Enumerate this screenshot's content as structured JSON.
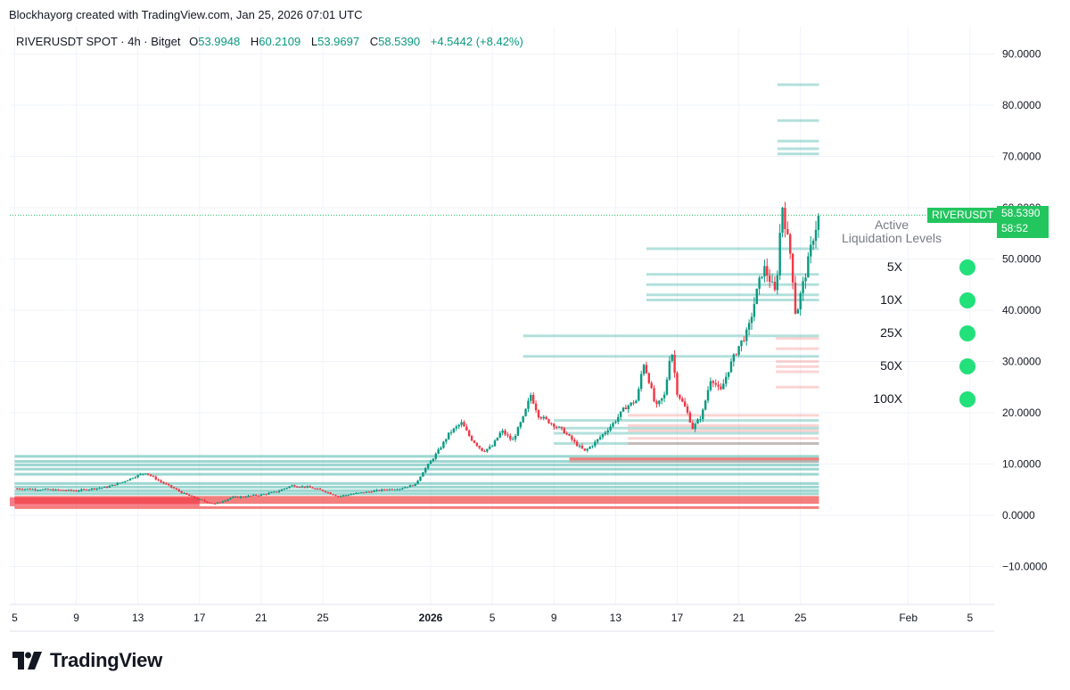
{
  "header": {
    "caption": "Blockhayorg created with TradingView.com, Jan 25, 2026 07:01 UTC"
  },
  "legend": {
    "symbol": "RIVERUSDT SPOT · 4h · Bitget",
    "o_label": "O",
    "o_value": "53.9948",
    "h_label": "H",
    "h_value": "60.2109",
    "l_label": "L",
    "l_value": "53.9697",
    "c_label": "C",
    "c_value": "58.5390",
    "change": "+4.5442 (+8.42%)"
  },
  "price_tag": {
    "symbol": "RIVERUSDT",
    "price": "58.5390",
    "countdown": "58:52",
    "color": "#22c55e"
  },
  "liquidation_panel": {
    "title_line1": "Active",
    "title_line2": "Liquidation Levels",
    "levels": [
      "5X",
      "10X",
      "25X",
      "50X",
      "100X"
    ],
    "dot_color": "#22e07a"
  },
  "footer": {
    "brand": "TradingView"
  },
  "chart_data": {
    "type": "candlestick",
    "title": "RIVERUSDT SPOT · 4h · Bitget",
    "ylim": [
      -15,
      95
    ],
    "y_ticks": [
      90,
      80,
      70,
      60,
      50,
      40,
      30,
      20,
      10,
      0,
      -10
    ],
    "y_tick_labels": [
      "90.0000",
      "80.0000",
      "70.0000",
      "60.0000",
      "50.0000",
      "40.0000",
      "30.0000",
      "20.0000",
      "10.0000",
      "0.0000",
      "−10.0000"
    ],
    "x_tick_labels": [
      "5",
      "9",
      "13",
      "17",
      "21",
      "25",
      "2026",
      "5",
      "9",
      "13",
      "17",
      "21",
      "25",
      "Feb",
      "5"
    ],
    "x_tick_days": [
      -27,
      -23,
      -19,
      -15,
      -11,
      -7,
      0,
      4,
      8,
      12,
      16,
      20,
      24,
      31,
      35
    ],
    "last_price": 58.539,
    "series": [
      {
        "name": "price_close",
        "points": [
          [
            -27,
            5.2
          ],
          [
            -25,
            5.0
          ],
          [
            -23,
            4.8
          ],
          [
            -21,
            5.5
          ],
          [
            -20,
            6.5
          ],
          [
            -19,
            7.8
          ],
          [
            -18.5,
            8.3
          ],
          [
            -17.5,
            6.5
          ],
          [
            -16,
            4.2
          ],
          [
            -15,
            3.0
          ],
          [
            -14,
            2.2
          ],
          [
            -13,
            3.4
          ],
          [
            -11,
            4.0
          ],
          [
            -10,
            4.6
          ],
          [
            -9,
            5.8
          ],
          [
            -8,
            5.5
          ],
          [
            -7,
            4.8
          ],
          [
            -6,
            3.7
          ],
          [
            -5,
            4.2
          ],
          [
            -4,
            4.6
          ],
          [
            -3,
            5.0
          ],
          [
            -2,
            5.2
          ],
          [
            -1,
            6.0
          ],
          [
            -0.5,
            8.5
          ],
          [
            0,
            10.5
          ],
          [
            0.6,
            13.0
          ],
          [
            1.2,
            16.0
          ],
          [
            2.0,
            18.0
          ],
          [
            2.6,
            15.0
          ],
          [
            3.4,
            12.5
          ],
          [
            4.0,
            13.5
          ],
          [
            4.6,
            16.5
          ],
          [
            5.3,
            14.5
          ],
          [
            6.0,
            19.0
          ],
          [
            6.5,
            23.5
          ],
          [
            7.0,
            19.5
          ],
          [
            7.8,
            18.0
          ],
          [
            8.6,
            16.5
          ],
          [
            9.4,
            14.0
          ],
          [
            10.0,
            12.5
          ],
          [
            10.6,
            14.0
          ],
          [
            11.4,
            16.5
          ],
          [
            12.0,
            18.5
          ],
          [
            12.6,
            21.0
          ],
          [
            13.4,
            22.5
          ],
          [
            13.8,
            30.0
          ],
          [
            14.2,
            26.0
          ],
          [
            14.6,
            21.0
          ],
          [
            15.2,
            23.5
          ],
          [
            15.6,
            33.0
          ],
          [
            16.0,
            24.0
          ],
          [
            16.6,
            20.5
          ],
          [
            17.0,
            17.0
          ],
          [
            17.6,
            19.5
          ],
          [
            18.2,
            27.0
          ],
          [
            18.8,
            24.0
          ],
          [
            19.4,
            29.0
          ],
          [
            20.0,
            33.0
          ],
          [
            20.6,
            36.0
          ],
          [
            21.2,
            44.0
          ],
          [
            21.6,
            48.5
          ],
          [
            22.0,
            46.0
          ],
          [
            22.4,
            43.0
          ],
          [
            22.8,
            61.0
          ],
          [
            23.1,
            55.0
          ],
          [
            23.4,
            50.0
          ],
          [
            23.7,
            38.5
          ],
          [
            24.0,
            43.0
          ],
          [
            24.4,
            48.0
          ],
          [
            24.8,
            54.0
          ],
          [
            25.2,
            58.5
          ]
        ]
      }
    ],
    "liquidation_levels_long_green": [
      84.0,
      77.0,
      73.0,
      71.5,
      70.5,
      52.0,
      47.0,
      45.0,
      43.0,
      42.0,
      35.0,
      31.0,
      18.5,
      17.0,
      16.0,
      14.0,
      11.5,
      10.5,
      9.8,
      9.0,
      8.0,
      6.2,
      5.5,
      4.8,
      4.2
    ],
    "liquidation_levels_short_red": [
      34.5,
      32.5,
      30.0,
      29.0,
      28.0,
      25.0,
      19.5,
      17.5,
      16.5,
      15.0,
      14.0,
      11.0,
      10.5,
      3.5,
      3.0,
      2.5,
      1.5
    ]
  }
}
